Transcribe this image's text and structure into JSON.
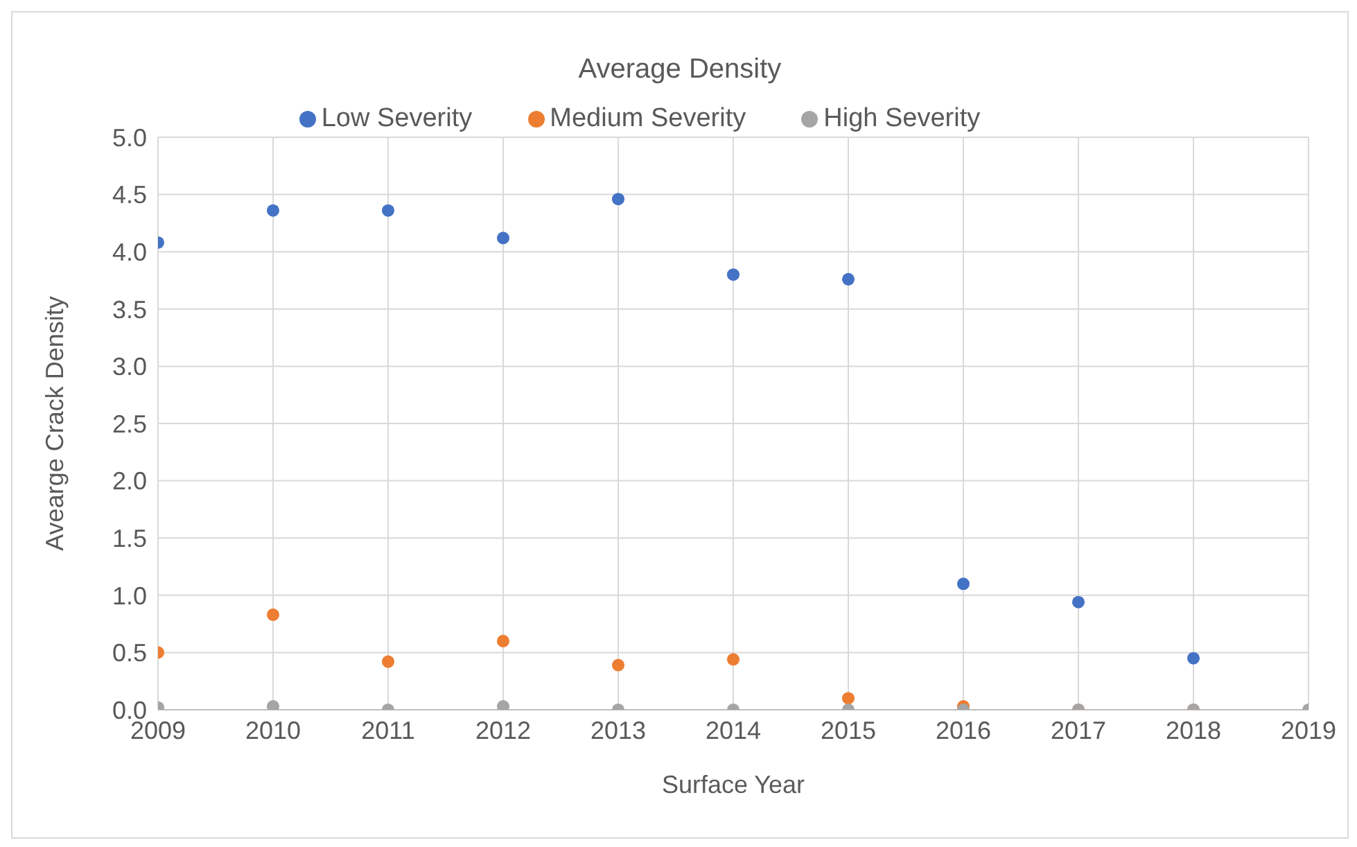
{
  "chart_data": {
    "type": "scatter",
    "title": "Average Density",
    "xlabel": "Surface Year",
    "ylabel": "Avearge Crack Density",
    "x": [
      2009,
      2010,
      2011,
      2012,
      2013,
      2014,
      2015,
      2016,
      2017,
      2018,
      2019
    ],
    "series": [
      {
        "name": "Low Severity",
        "color": "#4472c4",
        "values": [
          4.08,
          4.36,
          4.36,
          4.12,
          4.46,
          3.8,
          3.76,
          1.1,
          0.94,
          0.45,
          null
        ]
      },
      {
        "name": "Medium Severity",
        "color": "#ed7d31",
        "values": [
          0.5,
          0.83,
          0.42,
          0.6,
          0.39,
          0.44,
          0.1,
          0.03,
          0,
          0,
          null
        ]
      },
      {
        "name": "High Severity",
        "color": "#a5a5a5",
        "values": [
          0.02,
          0.03,
          0,
          0.03,
          0,
          0,
          0,
          0,
          0,
          0,
          0
        ]
      }
    ],
    "xlim": [
      2009,
      2019
    ],
    "xticks": [
      2009,
      2010,
      2011,
      2012,
      2013,
      2014,
      2015,
      2016,
      2017,
      2018,
      2019
    ],
    "ylim": [
      0,
      5
    ],
    "yticks": [
      {
        "value": 0,
        "label": "0.0"
      },
      0.5,
      {
        "value": 1,
        "label": "1.0"
      },
      1.5,
      {
        "value": 2,
        "label": "2.0"
      },
      2.5,
      {
        "value": 3,
        "label": "3.0"
      },
      3.5,
      {
        "value": 4,
        "label": "4.0"
      },
      4.5,
      {
        "value": 5,
        "label": "5.0"
      }
    ],
    "grid": true,
    "legend": "top",
    "marker": "circle"
  }
}
